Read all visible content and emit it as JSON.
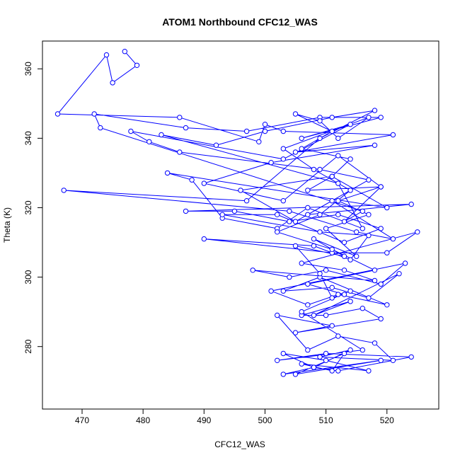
{
  "chart_data": {
    "type": "line",
    "title": "ATOM1 Northbound CFC12_WAS",
    "xlabel": "CFC12_WAS",
    "ylabel": "Theta (K)",
    "xlim": [
      463.5,
      528.5
    ],
    "ylim": [
      262,
      368
    ],
    "xticks": [
      470,
      480,
      490,
      500,
      510,
      520
    ],
    "yticks": [
      280,
      300,
      320,
      340,
      360
    ],
    "grid": false,
    "marker": "open-circle",
    "colors": {
      "series": "#0000ff",
      "axis": "#000000"
    },
    "series": [
      {
        "x": [
          477,
          479,
          475,
          474,
          466,
          486,
          499,
          500,
          503,
          521,
          505,
          518,
          501,
          490,
          503,
          512,
          519,
          513,
          516,
          473,
          472,
          487,
          497,
          509,
          519,
          506,
          514,
          503,
          478,
          481,
          486,
          509,
          517,
          505,
          496,
          511,
          520,
          484,
          488,
          493,
          502,
          507,
          516,
          512,
          483,
          492,
          500,
          511,
          518,
          509,
          497,
          467,
          504,
          515,
          521,
          511,
          507,
          524,
          487,
          495,
          504,
          512,
          519,
          513,
          502,
          493,
          509,
          517,
          514,
          508,
          490,
          511,
          520,
          525,
          506,
          513,
          518,
          498,
          504,
          510,
          519,
          523,
          501,
          507,
          512,
          520,
          509,
          503,
          511,
          517,
          522,
          508,
          514,
          506,
          510,
          516,
          519,
          505,
          511,
          502,
          507,
          512,
          518,
          521,
          509,
          514,
          508,
          503,
          510,
          517,
          506,
          511,
          513,
          505,
          519,
          503,
          508,
          512,
          524,
          510,
          502,
          516,
          506,
          514,
          511,
          509,
          505,
          513,
          508,
          515,
          510,
          517,
          512,
          519,
          507,
          511,
          514,
          506,
          511,
          505,
          509,
          512,
          517,
          503,
          508,
          514,
          509,
          502,
          511,
          518,
          507,
          513
        ],
        "y": [
          365,
          361,
          356,
          364,
          347,
          346,
          339,
          344,
          342,
          341,
          336,
          338,
          333,
          327,
          322,
          335,
          326,
          316,
          319,
          343,
          347,
          343,
          342,
          346,
          346,
          340,
          344,
          334,
          342,
          339,
          336,
          331,
          328,
          316,
          325,
          329,
          320,
          330,
          328,
          317,
          314,
          320,
          314,
          327,
          341,
          338,
          342,
          346,
          348,
          340,
          322,
          325,
          319,
          313,
          311,
          322,
          318,
          321,
          319,
          319,
          316,
          318,
          314,
          310,
          318,
          318,
          313,
          312,
          305,
          309,
          311,
          307,
          307,
          313,
          304,
          302,
          299,
          302,
          300,
          302,
          298,
          304,
          296,
          292,
          295,
          292,
          300,
          296,
          297,
          294,
          301,
          289,
          293,
          289,
          289,
          291,
          288,
          284,
          286,
          289,
          279,
          283,
          281,
          276,
          277,
          279,
          274,
          278,
          276,
          273,
          275,
          273,
          278,
          272,
          276,
          272,
          274,
          273,
          277,
          278,
          276,
          279,
          290,
          296,
          294,
          301,
          309,
          306,
          311,
          306,
          314,
          318,
          322,
          326,
          325,
          329,
          334,
          337,
          342,
          347,
          345,
          340,
          346,
          337,
          331,
          325,
          318,
          313,
          308,
          302,
          298,
          295
        ]
      }
    ]
  }
}
